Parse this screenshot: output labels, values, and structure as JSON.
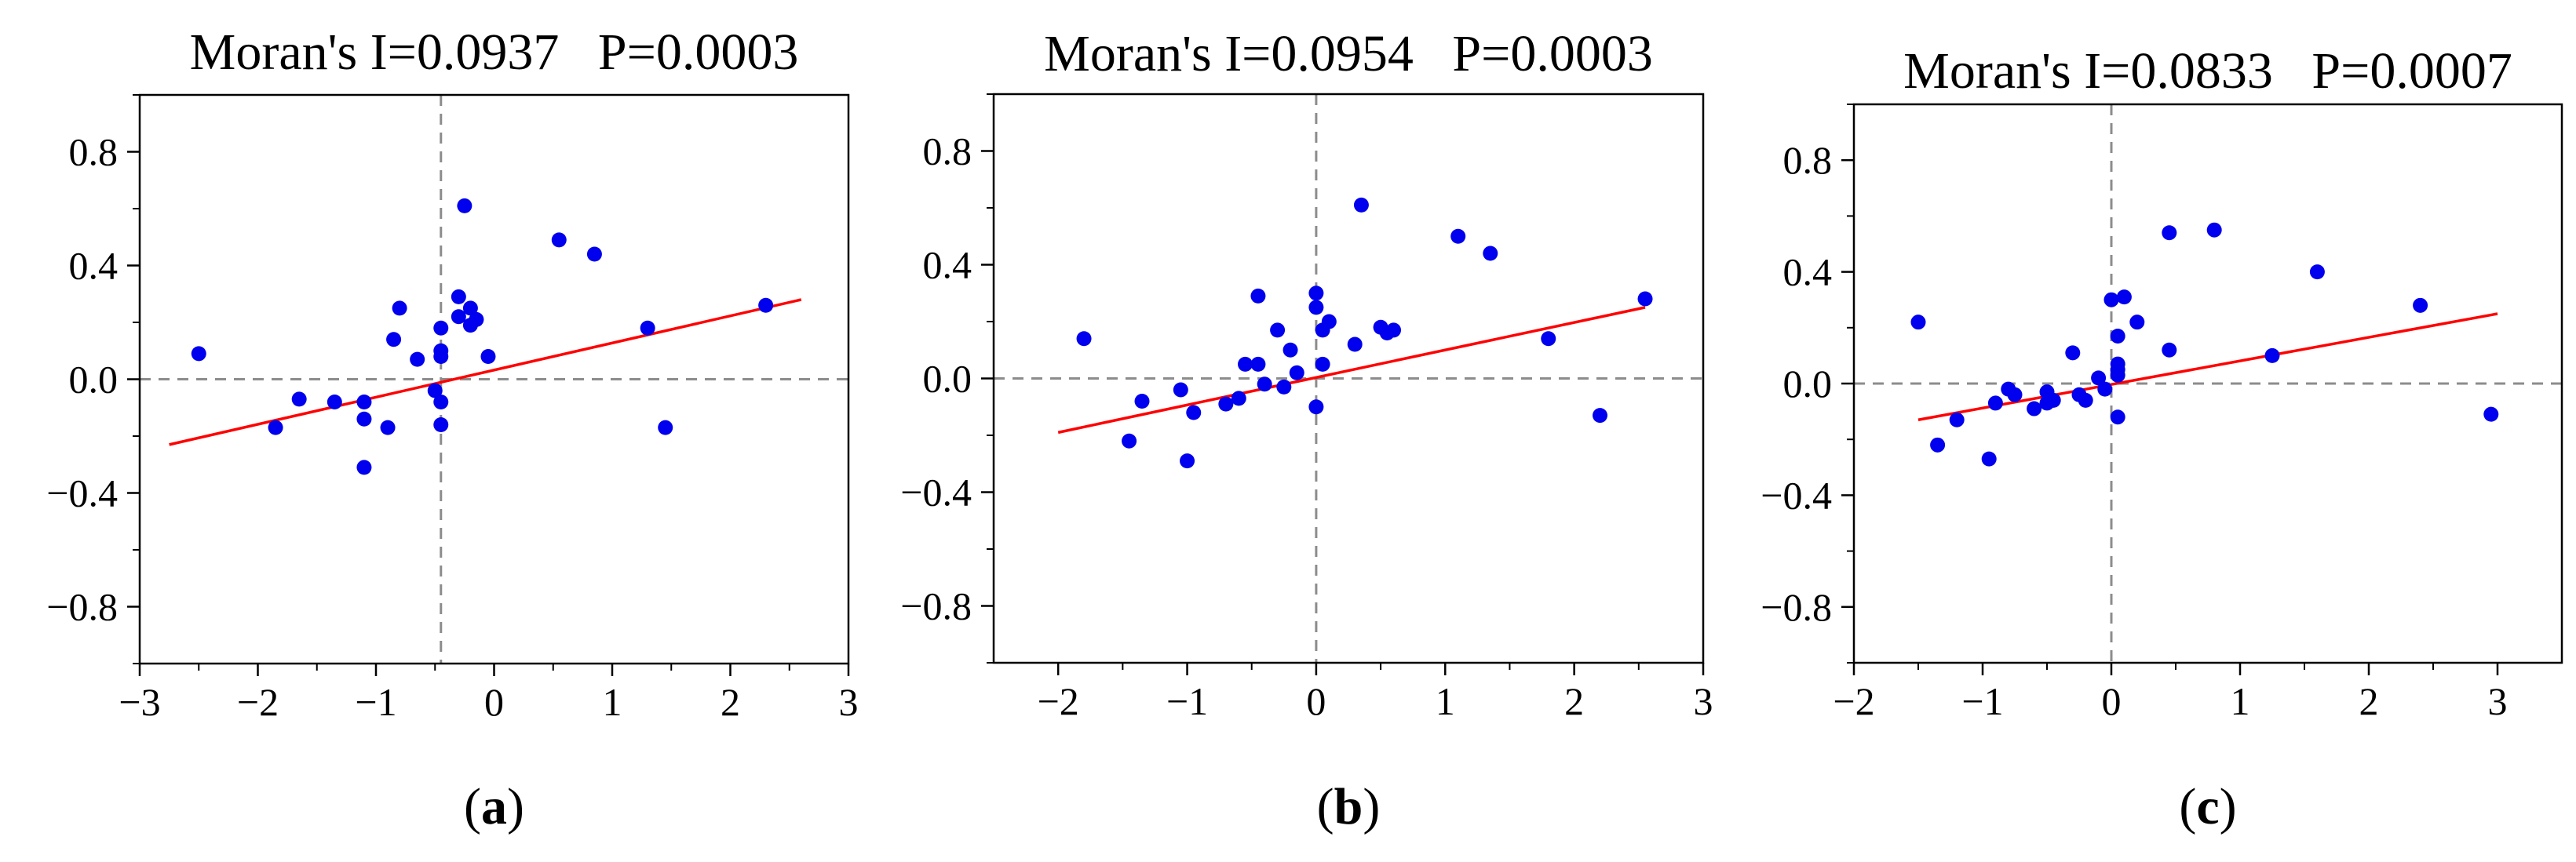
{
  "colors": {
    "points": "#0000ee",
    "fit_line": "#ff0000",
    "zero_lines": "#8c8c8c",
    "frame": "#000000"
  },
  "chart_data": [
    {
      "type": "scatter",
      "title": "Moran's I=0.0937   P=0.0003",
      "panel_label": "a",
      "xlim": [
        -3,
        3
      ],
      "ylim": [
        -1,
        1
      ],
      "xticks": [
        -3,
        -2,
        -1,
        0,
        1,
        2,
        3
      ],
      "xtick_labels": [
        "−3",
        "−2",
        "−1",
        "0",
        "1",
        "2",
        "3"
      ],
      "yticks": [
        0.8,
        0.4,
        0.0,
        -0.4,
        -0.8
      ],
      "ytick_labels": [
        "0.8",
        "0.4",
        "0.0",
        "−0.4",
        "−0.8"
      ],
      "x_zero_line": -0.45,
      "y_zero_line": 0,
      "fit_line": {
        "x": [
          -2.75,
          2.6
        ],
        "y": [
          -0.23,
          0.28
        ]
      },
      "points": {
        "x": [
          -2.5,
          -1.85,
          -1.65,
          -1.35,
          -1.1,
          -1.1,
          -1.1,
          -0.9,
          -0.85,
          -0.8,
          -0.65,
          -0.5,
          -0.45,
          -0.45,
          -0.45,
          -0.45,
          -0.45,
          -0.3,
          -0.3,
          -0.25,
          -0.2,
          -0.2,
          -0.15,
          -0.05,
          0.55,
          0.85,
          1.3,
          1.45,
          2.3
        ],
        "y": [
          0.09,
          -0.17,
          -0.07,
          -0.08,
          -0.08,
          -0.14,
          -0.31,
          -0.17,
          0.14,
          0.25,
          0.07,
          -0.04,
          0.18,
          0.1,
          0.08,
          -0.08,
          -0.16,
          0.22,
          0.29,
          0.61,
          0.25,
          0.19,
          0.21,
          0.08,
          0.49,
          0.44,
          0.18,
          -0.17,
          0.26
        ]
      }
    },
    {
      "type": "scatter",
      "title": "Moran's I=0.0954   P=0.0003",
      "panel_label": "b",
      "xlim": [
        -2.5,
        3
      ],
      "ylim": [
        -1,
        1
      ],
      "xticks": [
        -2,
        -1,
        0,
        1,
        2,
        3
      ],
      "xtick_labels": [
        "−2",
        "−1",
        "0",
        "1",
        "2",
        "3"
      ],
      "yticks": [
        0.8,
        0.4,
        0.0,
        -0.4,
        -0.8
      ],
      "ytick_labels": [
        "0.8",
        "0.4",
        "0.0",
        "−0.4",
        "−0.8"
      ],
      "x_zero_line": 0,
      "y_zero_line": 0,
      "fit_line": {
        "x": [
          -2.0,
          2.55
        ],
        "y": [
          -0.19,
          0.25
        ]
      },
      "points": {
        "x": [
          -1.8,
          -1.45,
          -1.35,
          -1.05,
          -1.0,
          -0.95,
          -0.7,
          -0.6,
          -0.55,
          -0.45,
          -0.45,
          -0.4,
          -0.3,
          -0.25,
          -0.2,
          -0.15,
          0.0,
          0.0,
          0.0,
          0.05,
          0.05,
          0.1,
          0.3,
          0.35,
          0.5,
          0.55,
          0.6,
          1.1,
          1.35,
          1.8,
          2.2,
          2.55
        ],
        "y": [
          0.14,
          -0.22,
          -0.08,
          -0.04,
          -0.29,
          -0.12,
          -0.09,
          -0.07,
          0.05,
          0.29,
          0.05,
          -0.02,
          0.17,
          -0.03,
          0.1,
          0.02,
          0.3,
          0.25,
          -0.1,
          0.05,
          0.17,
          0.2,
          0.12,
          0.61,
          0.18,
          0.16,
          0.17,
          0.5,
          0.44,
          0.14,
          -0.13,
          0.28
        ]
      }
    },
    {
      "type": "scatter",
      "title": "Moran's I=0.0833   P=0.0007",
      "panel_label": "c",
      "xlim": [
        -2,
        3.5
      ],
      "ylim": [
        -1,
        1
      ],
      "xticks": [
        -2,
        -1,
        0,
        1,
        2,
        3
      ],
      "xtick_labels": [
        "−2",
        "−1",
        "0",
        "1",
        "2",
        "3"
      ],
      "yticks": [
        0.8,
        0.4,
        0.0,
        -0.4,
        -0.8
      ],
      "ytick_labels": [
        "0.8",
        "0.4",
        "0.0",
        "−0.4",
        "−0.8"
      ],
      "x_zero_line": 0,
      "y_zero_line": 0,
      "fit_line": {
        "x": [
          -1.5,
          3.0
        ],
        "y": [
          -0.13,
          0.25
        ]
      },
      "points": {
        "x": [
          -1.5,
          -1.35,
          -1.2,
          -0.95,
          -0.9,
          -0.8,
          -0.75,
          -0.6,
          -0.5,
          -0.5,
          -0.45,
          -0.3,
          -0.25,
          -0.2,
          -0.1,
          -0.05,
          0.0,
          0.05,
          0.05,
          0.05,
          0.05,
          0.05,
          0.1,
          0.2,
          0.45,
          0.45,
          0.8,
          1.25,
          1.6,
          2.4,
          2.95
        ],
        "y": [
          0.22,
          -0.22,
          -0.13,
          -0.27,
          -0.07,
          -0.02,
          -0.04,
          -0.09,
          -0.03,
          -0.07,
          -0.06,
          0.11,
          -0.04,
          -0.06,
          0.02,
          -0.02,
          0.3,
          0.03,
          0.05,
          0.07,
          0.17,
          -0.12,
          0.31,
          0.22,
          0.12,
          0.54,
          0.55,
          0.1,
          0.4,
          0.28,
          -0.11
        ]
      }
    }
  ]
}
